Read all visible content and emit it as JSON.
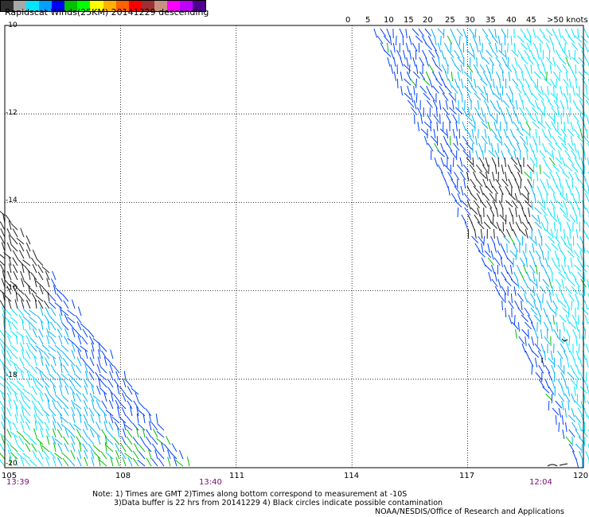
{
  "title": "Rapidscat Winds(25KM) 20141229 descending",
  "legend": {
    "colors": [
      "#303030",
      "#a8a8a8",
      "#00e6ff",
      "#00a0ff",
      "#0000ff",
      "#00c000",
      "#00ff00",
      "#ffff00",
      "#ffb000",
      "#ff6000",
      "#ff0000",
      "#a03030",
      "#c89080",
      "#ff00ff",
      "#c000ff",
      "#500090"
    ],
    "labels": [
      "0",
      "5",
      "10",
      "15",
      "20",
      "25",
      "30",
      "35",
      "40",
      "45",
      ">50 knots"
    ]
  },
  "lat_labels": [
    "-10",
    "-12",
    "-14",
    "-16",
    "-18",
    "-20"
  ],
  "lon_labels": [
    "105",
    "108",
    "111",
    "114",
    "117",
    "120"
  ],
  "time_labels": [
    "13:39",
    "13:40",
    "12:04"
  ],
  "notes": {
    "line1": "Note: 1) Times are GMT 2)Times along bottom correspond to measurement at -10S",
    "line2": "3)Data buffer is 22 hrs from 20141229 4) Black circles indicate possible contamination",
    "line3": "NOAA/NESDIS/Office of Research and Applications"
  },
  "map": {
    "lon_range": [
      105,
      120
    ],
    "lat_range": [
      -20,
      -10
    ],
    "grid": "dotted, every 3° lon and 2° lat"
  }
}
